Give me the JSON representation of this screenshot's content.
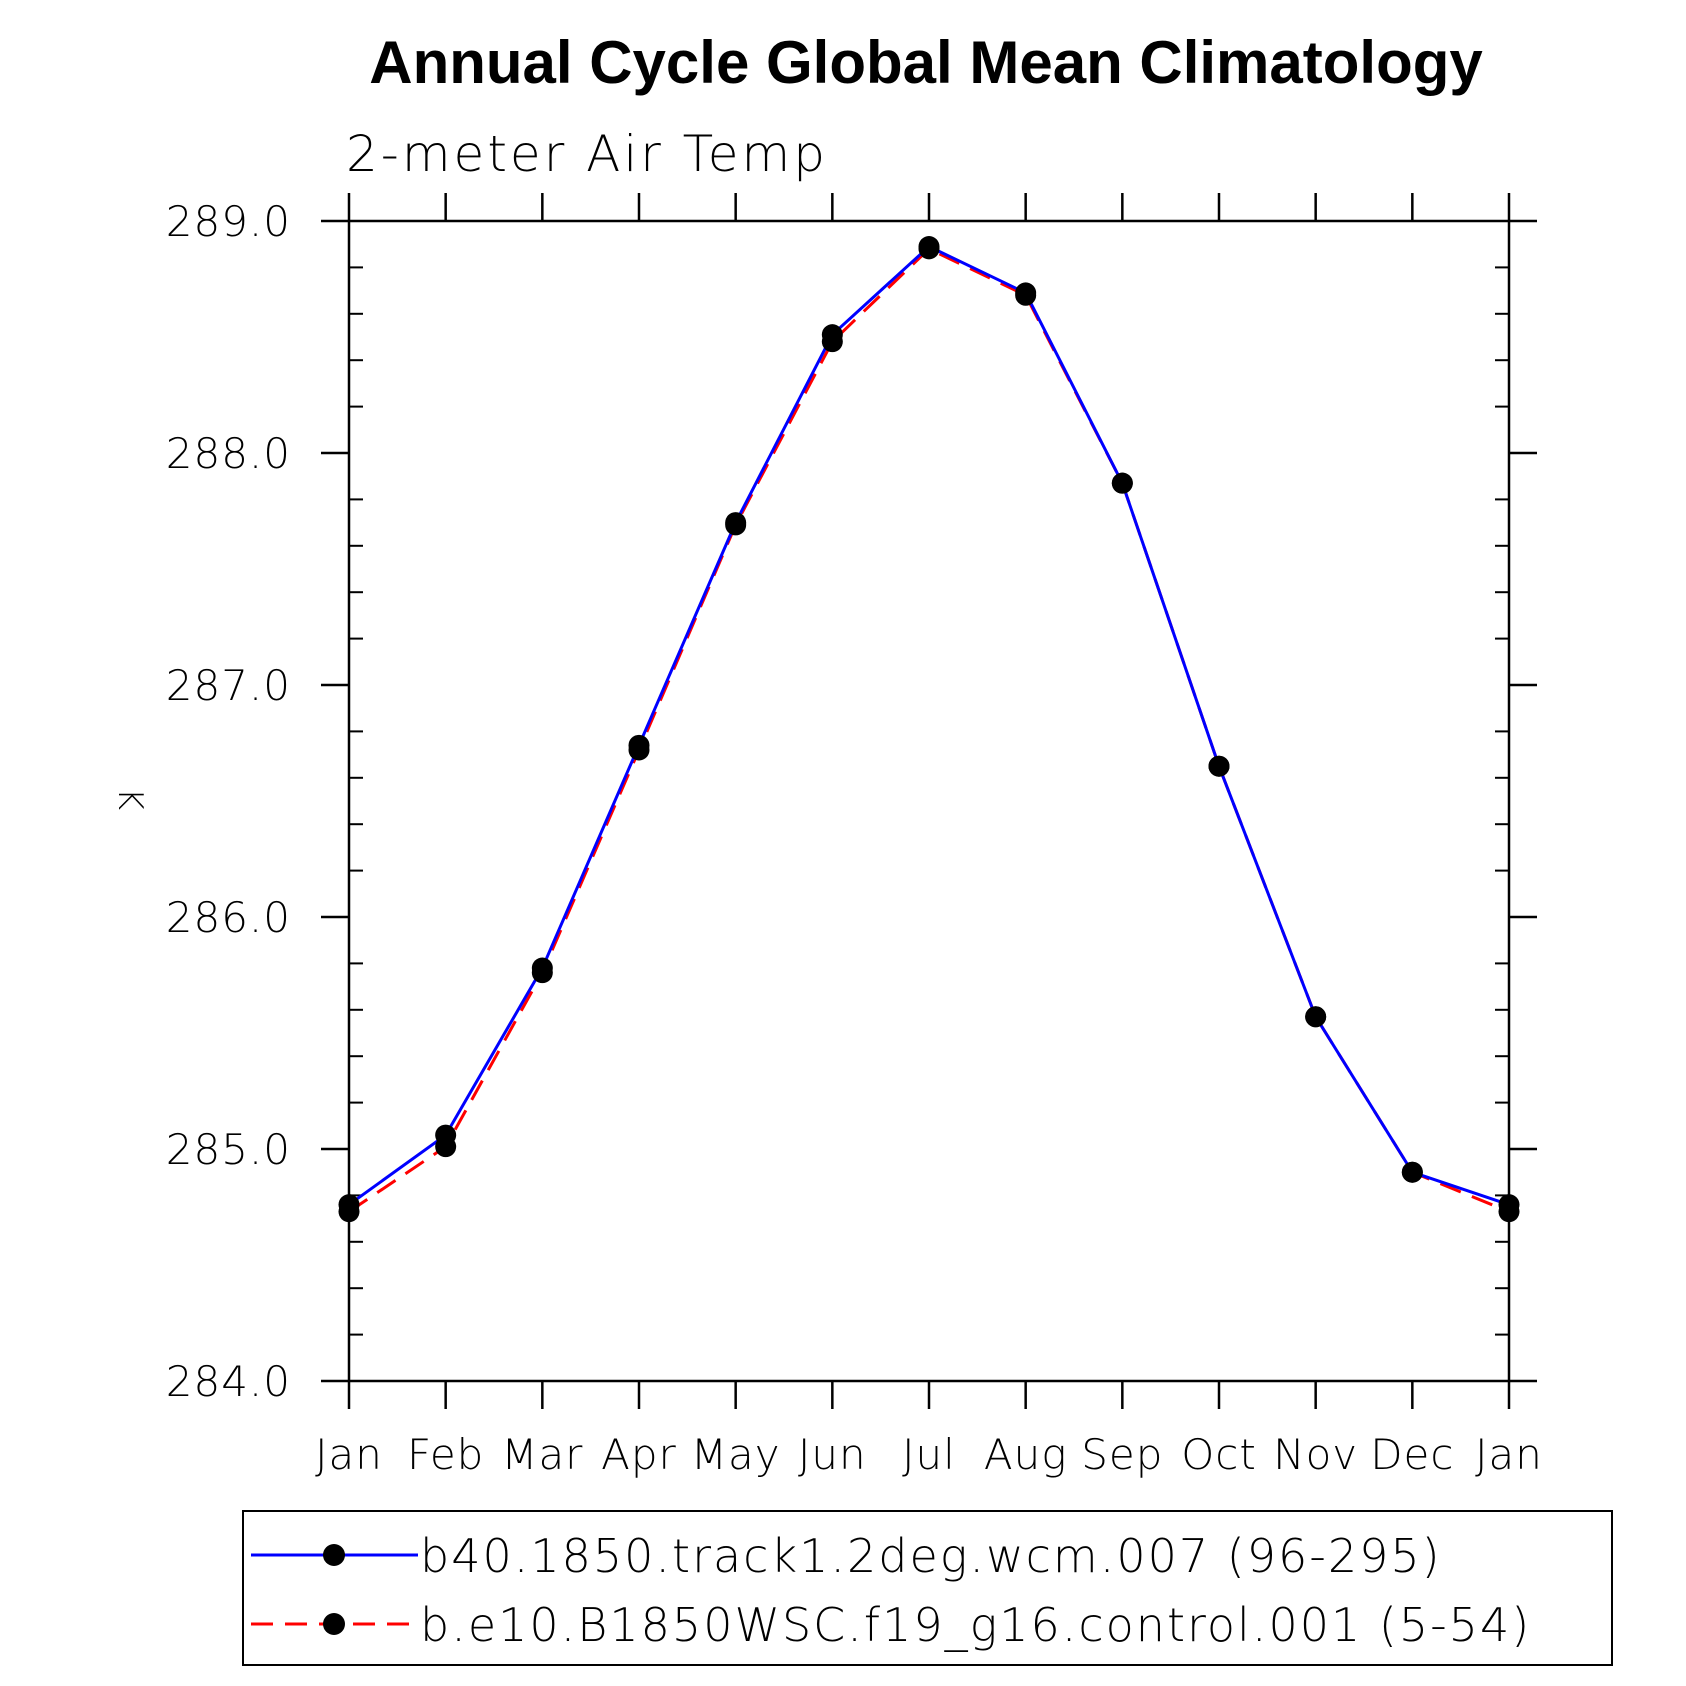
{
  "chart_data": {
    "type": "line",
    "title": "Annual Cycle Global Mean Climatology",
    "subtitle": "2-meter Air Temp",
    "ylabel": "K",
    "xlabel": "",
    "categories": [
      "Jan",
      "Feb",
      "Mar",
      "Apr",
      "May",
      "Jun",
      "Jul",
      "Aug",
      "Sep",
      "Oct",
      "Nov",
      "Dec",
      "Jan"
    ],
    "ylim": [
      284.0,
      289.0
    ],
    "yticks": [
      284.0,
      285.0,
      286.0,
      287.0,
      288.0,
      289.0
    ],
    "ytick_labels": [
      "284.0",
      "285.0",
      "286.0",
      "287.0",
      "288.0",
      "289.0"
    ],
    "grid": false,
    "legend_position": "bottom",
    "series": [
      {
        "name": "b40.1850.track1.2deg.wcm.007 (96-295)",
        "color": "#0000ff",
        "line_style": "solid",
        "marker": "filled-circle",
        "values": [
          284.76,
          285.06,
          285.78,
          286.74,
          287.7,
          288.51,
          288.89,
          288.69,
          287.87,
          286.65,
          285.57,
          284.9,
          284.76
        ]
      },
      {
        "name": "b.e10.B1850WSC.f19_g16.control.001 (5-54)",
        "color": "#ff0000",
        "line_style": "dashed",
        "marker": "filled-circle",
        "values": [
          284.73,
          285.01,
          285.76,
          286.72,
          287.69,
          288.48,
          288.88,
          288.68,
          287.87,
          286.65,
          285.57,
          284.9,
          284.73
        ]
      }
    ]
  }
}
